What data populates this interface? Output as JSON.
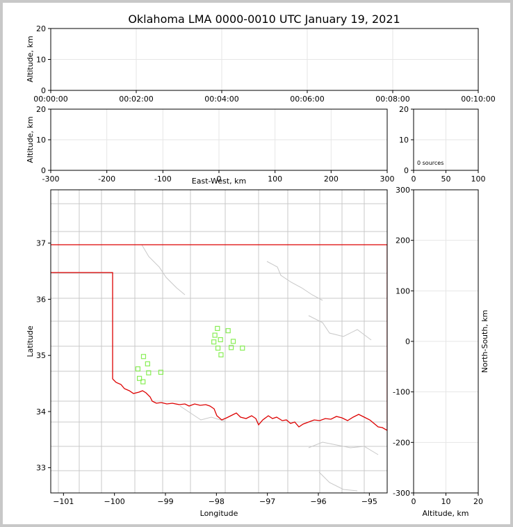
{
  "chart_data": [
    {
      "type": "scatter",
      "panel": "time-altitude",
      "title": "Oklahoma LMA 0000-0010 UTC January 19, 2021",
      "ylabel": "Altitude, km",
      "xlabel": "",
      "x_ticks": [
        "00:00:00",
        "00:02:00",
        "00:04:00",
        "00:06:00",
        "00:08:00",
        "00:10:00"
      ],
      "xlim_minutes": [
        0,
        10
      ],
      "ylim": [
        0,
        20
      ],
      "y_ticks": [
        0,
        10,
        20
      ],
      "grid": true,
      "points": []
    },
    {
      "type": "scatter",
      "panel": "east-west-altitude",
      "xlabel": "East-West, km",
      "ylabel": "Altitude, km",
      "xlim": [
        -300,
        300
      ],
      "x_ticks": [
        -300,
        -200,
        -100,
        0,
        100,
        200,
        300
      ],
      "ylim": [
        0,
        20
      ],
      "y_ticks": [
        0,
        10,
        20
      ],
      "grid": true,
      "points": []
    },
    {
      "type": "histogram",
      "panel": "altitude-histogram",
      "xlim": [
        0,
        100
      ],
      "x_ticks": [
        0,
        50,
        100
      ],
      "ylim": [
        0,
        20
      ],
      "y_ticks": [
        0,
        10,
        20
      ],
      "annotation": "0 sources",
      "grid": true
    },
    {
      "type": "scatter",
      "panel": "plan-view-map",
      "xlabel": "Longitude",
      "ylabel": "Latitude",
      "xlim": [
        -101.25,
        -94.65
      ],
      "ylim": [
        32.55,
        37.95
      ],
      "x_ticks": [
        -101,
        -100,
        -99,
        -98,
        -97,
        -96,
        -95
      ],
      "y_ticks": [
        33,
        34,
        35,
        36,
        37
      ],
      "station_color": "#88ee55",
      "state_border_color": "#dd0000",
      "county_color": "#c8c8c8",
      "stations": [
        {
          "lon": -97.98,
          "lat": 35.48
        },
        {
          "lon": -98.03,
          "lat": 35.36
        },
        {
          "lon": -97.92,
          "lat": 35.28
        },
        {
          "lon": -98.05,
          "lat": 35.24
        },
        {
          "lon": -97.77,
          "lat": 35.44
        },
        {
          "lon": -97.67,
          "lat": 35.25
        },
        {
          "lon": -97.97,
          "lat": 35.13
        },
        {
          "lon": -97.71,
          "lat": 35.14
        },
        {
          "lon": -97.49,
          "lat": 35.13
        },
        {
          "lon": -97.91,
          "lat": 35.01
        },
        {
          "lon": -99.43,
          "lat": 34.98
        },
        {
          "lon": -99.35,
          "lat": 34.85
        },
        {
          "lon": -99.54,
          "lat": 34.76
        },
        {
          "lon": -99.33,
          "lat": 34.69
        },
        {
          "lon": -99.09,
          "lat": 34.7
        },
        {
          "lon": -99.51,
          "lat": 34.59
        },
        {
          "lon": -99.44,
          "lat": 34.53
        }
      ]
    },
    {
      "type": "scatter",
      "panel": "altitude-north-south",
      "xlabel": "Altitude, km",
      "ylabel": "North-South, km",
      "xlim": [
        0,
        20
      ],
      "x_ticks": [
        0,
        10,
        20
      ],
      "ylim": [
        -300,
        300
      ],
      "y_ticks": [
        -300,
        -200,
        -100,
        0,
        100,
        200,
        300
      ],
      "grid": true,
      "points": []
    }
  ]
}
